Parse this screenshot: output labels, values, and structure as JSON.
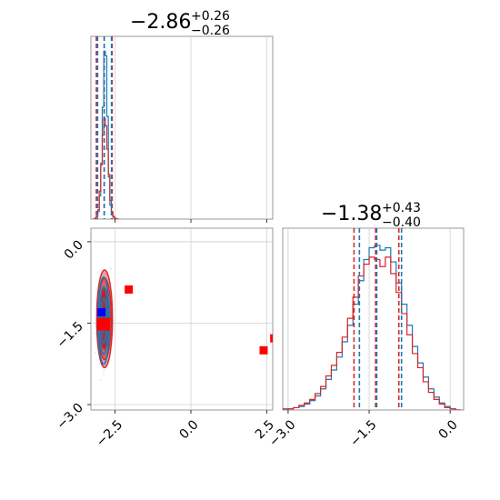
{
  "chart_data": {
    "type": "corner",
    "parameters": [
      {
        "title": {
          "main": "−2.86",
          "sup": "+0.26",
          "sub": "−0.26"
        },
        "median": -2.86,
        "q_low": -3.12,
        "q_high": -2.6,
        "blue_median": -2.86,
        "blue_q_low": -3.08,
        "blue_q_high": -2.62,
        "xlim": [
          -3.3,
          2.7
        ]
      },
      {
        "title": {
          "main": "−1.38",
          "sup": "+0.43",
          "sub": "−0.40"
        },
        "median": -1.38,
        "q_low": -1.78,
        "q_high": -0.95,
        "blue_median": -1.36,
        "blue_q_low": -1.68,
        "blue_q_high": -0.9,
        "xlim": [
          -3.1,
          0.25
        ]
      }
    ],
    "diag_hist_1": {
      "blue": {
        "x": [
          -3.2,
          -3.15,
          -3.1,
          -3.05,
          -3.0,
          -2.95,
          -2.9,
          -2.85,
          -2.8,
          -2.75,
          -2.7,
          -2.65,
          -2.6,
          -2.55,
          -2.5,
          -2.45,
          -2.4
        ],
        "y": [
          0,
          0,
          2,
          8,
          25,
          60,
          120,
          180,
          175,
          110,
          45,
          15,
          5,
          2,
          1,
          0,
          0
        ]
      },
      "red": {
        "x": [
          -3.2,
          -3.15,
          -3.1,
          -3.05,
          -3.0,
          -2.95,
          -2.9,
          -2.85,
          -2.8,
          -2.75,
          -2.7,
          -2.65,
          -2.6,
          -2.55,
          -2.5,
          -2.45,
          -2.4
        ],
        "y": [
          0,
          1,
          3,
          10,
          30,
          58,
          90,
          108,
          100,
          75,
          48,
          20,
          8,
          3,
          1,
          0,
          0
        ]
      },
      "ymax": 190
    },
    "diag_hist_2": {
      "x": [
        -3.05,
        -2.95,
        -2.85,
        -2.75,
        -2.65,
        -2.55,
        -2.45,
        -2.35,
        -2.25,
        -2.15,
        -2.05,
        -1.95,
        -1.85,
        -1.75,
        -1.65,
        -1.55,
        -1.45,
        -1.35,
        -1.25,
        -1.15,
        -1.05,
        -0.95,
        -0.85,
        -0.75,
        -0.65,
        -0.55,
        -0.45,
        -0.35,
        -0.25,
        -0.15,
        -0.05,
        0.05,
        0.15
      ],
      "blue": [
        0,
        1,
        2,
        3,
        5,
        8,
        12,
        18,
        26,
        34,
        45,
        58,
        72,
        90,
        110,
        128,
        138,
        140,
        136,
        138,
        126,
        108,
        90,
        72,
        54,
        40,
        28,
        18,
        11,
        6,
        3,
        1,
        0
      ],
      "red": [
        1,
        1,
        2,
        4,
        6,
        9,
        14,
        20,
        29,
        38,
        49,
        62,
        78,
        96,
        114,
        124,
        130,
        128,
        122,
        130,
        116,
        100,
        82,
        64,
        48,
        36,
        24,
        15,
        9,
        5,
        2,
        1,
        0
      ],
      "ymax": 150
    },
    "joint": {
      "contour_centers": {
        "x": -2.85,
        "y": -1.42
      },
      "contour_levels": [
        {
          "rx": 0.26,
          "ry": 0.9
        },
        {
          "rx": 0.22,
          "ry": 0.75
        },
        {
          "rx": 0.17,
          "ry": 0.56
        },
        {
          "rx": 0.11,
          "ry": 0.36
        }
      ],
      "red_points": [
        {
          "x": -2.05,
          "y": -0.88
        },
        {
          "x": -2.88,
          "y": -1.52
        },
        {
          "x": 2.4,
          "y": -2.0
        },
        {
          "x": 2.75,
          "y": -1.78
        }
      ],
      "blue_point": {
        "x": -2.95,
        "y": -1.3
      },
      "xlim": [
        -3.3,
        2.7
      ],
      "ylim": [
        -3.1,
        0.25
      ]
    },
    "axes": {
      "joint_x_ticks": [
        "−2.5",
        "0.0",
        "2.5"
      ],
      "joint_x_tick_values": [
        -2.5,
        0.0,
        2.5
      ],
      "joint_y_ticks": [
        "0.0",
        "−1.5",
        "−3.0"
      ],
      "joint_y_tick_values": [
        0.0,
        -1.5,
        -3.0
      ],
      "diag2_x_ticks": [
        "−3.0",
        "−1.5",
        "0.0"
      ],
      "diag2_x_tick_values": [
        -3.0,
        -1.5,
        0.0
      ]
    },
    "colors": {
      "red": "#d62728",
      "blue": "#1f77b4",
      "fill_red": "#e8a0a0",
      "dark_red": "#c41e1e",
      "grid": "#cfcfcf",
      "square_blue": "#0000ff",
      "square_red": "#ff0000"
    },
    "grid": true
  }
}
